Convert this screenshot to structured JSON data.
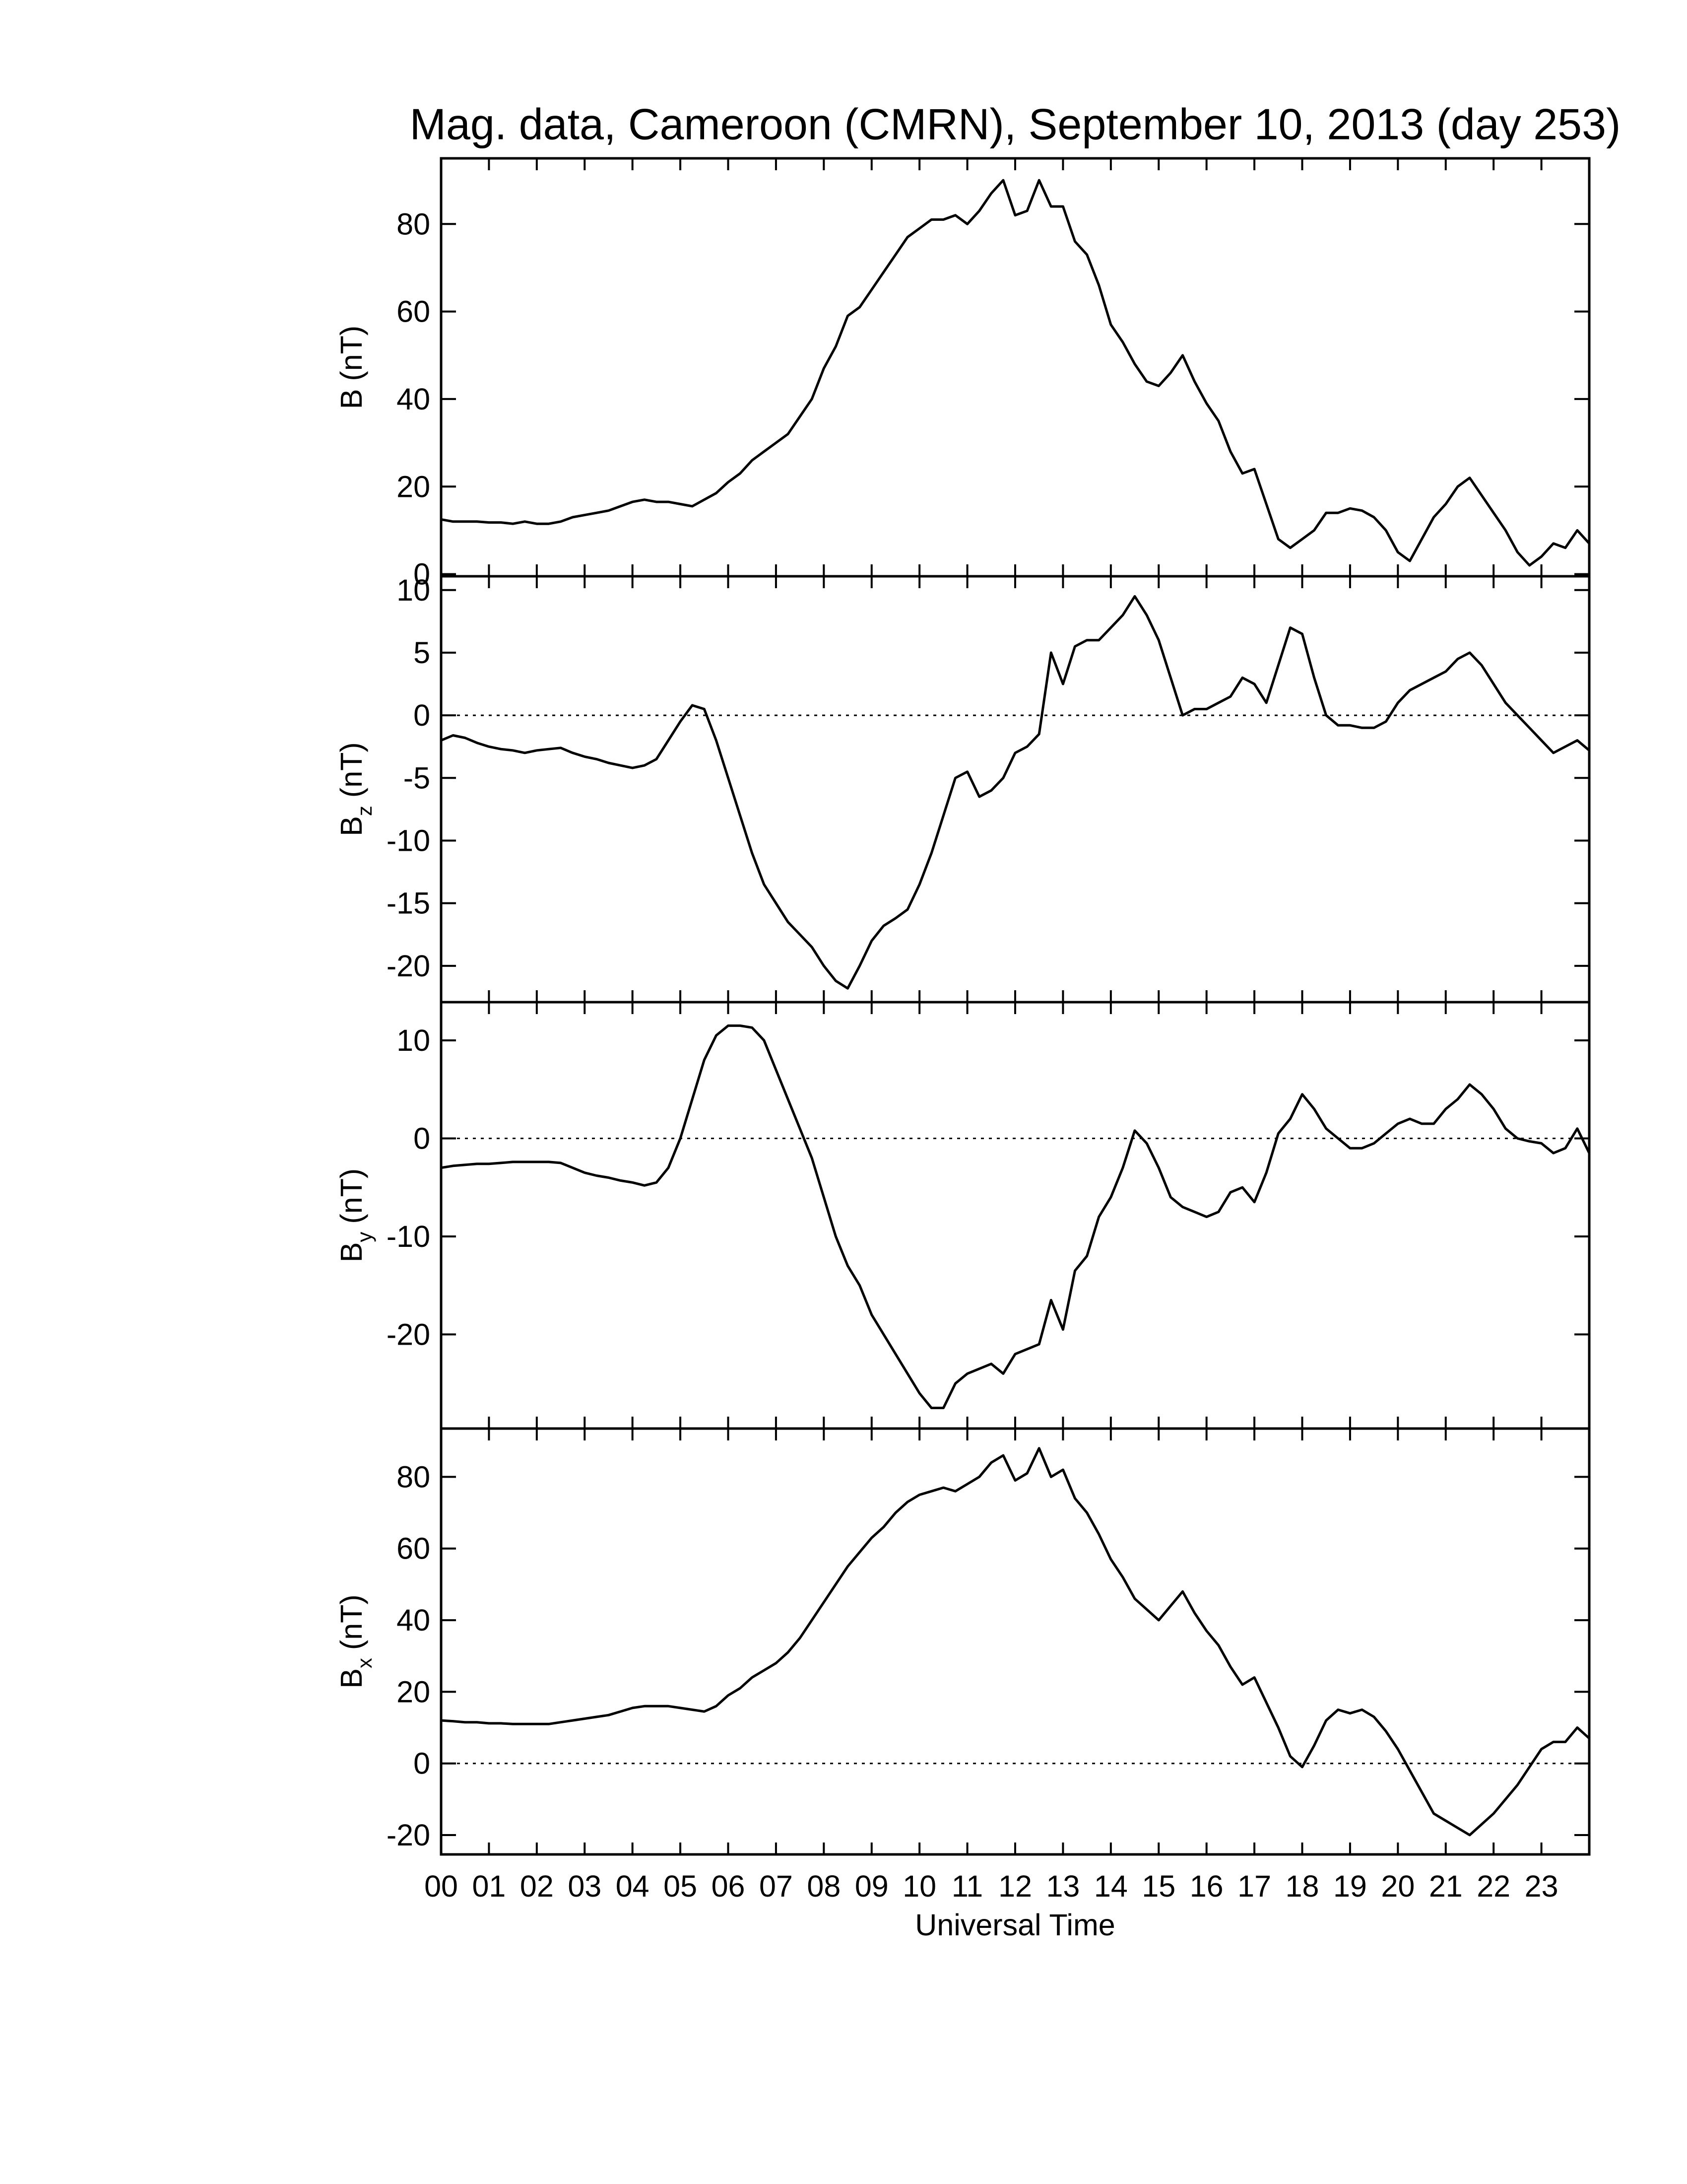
{
  "chart_data": [
    {
      "type": "line",
      "title": "Mag. data, Cameroon (CMRN), September 10, 2013 (day 253)",
      "ylabel": {
        "base": "B",
        "unit": "(nT)"
      },
      "color": "#000000",
      "xlim": [
        0,
        24
      ],
      "ylim": [
        -0.5,
        95
      ],
      "yticks": [
        0,
        20,
        40,
        60,
        80
      ],
      "x": [
        0,
        0.25,
        0.5,
        0.75,
        1,
        1.25,
        1.5,
        1.75,
        2,
        2.25,
        2.5,
        2.75,
        3,
        3.25,
        3.5,
        3.75,
        4,
        4.25,
        4.5,
        4.75,
        5,
        5.25,
        5.5,
        5.75,
        6,
        6.25,
        6.5,
        6.75,
        7,
        7.25,
        7.5,
        7.75,
        8,
        8.25,
        8.5,
        8.75,
        9,
        9.25,
        9.5,
        9.75,
        10,
        10.25,
        10.5,
        10.75,
        11,
        11.25,
        11.5,
        11.75,
        12,
        12.25,
        12.5,
        12.75,
        13,
        13.25,
        13.5,
        13.75,
        14,
        14.25,
        14.5,
        14.75,
        15,
        15.25,
        15.5,
        15.75,
        16,
        16.25,
        16.5,
        16.75,
        17,
        17.25,
        17.5,
        17.75,
        18,
        18.25,
        18.5,
        18.75,
        19,
        19.25,
        19.5,
        19.75,
        20,
        20.25,
        20.5,
        20.75,
        21,
        21.25,
        21.5,
        21.75,
        22,
        22.25,
        22.5,
        22.75,
        23,
        23.25,
        23.5,
        23.75,
        24
      ],
      "values": [
        12.5,
        12,
        12,
        12,
        11.8,
        11.8,
        11.5,
        12,
        11.5,
        11.5,
        12,
        13,
        13.5,
        14,
        14.5,
        15.5,
        16.5,
        17,
        16.5,
        16.5,
        16,
        15.5,
        17,
        18.5,
        21,
        23,
        26,
        28,
        30,
        32,
        36,
        40,
        47,
        52,
        59,
        61,
        65,
        69,
        73,
        77,
        79,
        81,
        81,
        82,
        80,
        83,
        87,
        90,
        82,
        83,
        90,
        84,
        84,
        76,
        73,
        66,
        57,
        53,
        48,
        44,
        43,
        46,
        50,
        44,
        39,
        35,
        28,
        23,
        24,
        16,
        8,
        6,
        8,
        10,
        14,
        14,
        15,
        14.5,
        13,
        10,
        5,
        3,
        8,
        13,
        16,
        20,
        22,
        18,
        14,
        10,
        5,
        2,
        4,
        7,
        6,
        10,
        7
      ]
    },
    {
      "type": "line",
      "ylabel": {
        "base": "B",
        "sub": "z",
        "unit": "(nT)"
      },
      "color": "#000000",
      "zero_line": true,
      "xlim": [
        0,
        24
      ],
      "ylim": [
        -22.9,
        11.1
      ],
      "yticks": [
        10,
        5,
        0,
        -5,
        -10,
        -15,
        -20
      ],
      "x": [
        0,
        0.25,
        0.5,
        0.75,
        1,
        1.25,
        1.5,
        1.75,
        2,
        2.25,
        2.5,
        2.75,
        3,
        3.25,
        3.5,
        3.75,
        4,
        4.25,
        4.5,
        4.75,
        5,
        5.25,
        5.5,
        5.75,
        6,
        6.25,
        6.5,
        6.75,
        7,
        7.25,
        7.5,
        7.75,
        8,
        8.25,
        8.5,
        8.75,
        9,
        9.25,
        9.5,
        9.75,
        10,
        10.25,
        10.5,
        10.75,
        11,
        11.25,
        11.5,
        11.75,
        12,
        12.25,
        12.5,
        12.75,
        13,
        13.25,
        13.5,
        13.75,
        14,
        14.25,
        14.5,
        14.75,
        15,
        15.25,
        15.5,
        15.75,
        16,
        16.25,
        16.5,
        16.75,
        17,
        17.25,
        17.5,
        17.75,
        18,
        18.25,
        18.5,
        18.75,
        19,
        19.25,
        19.5,
        19.75,
        20,
        20.25,
        20.5,
        20.75,
        21,
        21.25,
        21.5,
        21.75,
        22,
        22.25,
        22.5,
        22.75,
        23,
        23.25,
        23.5,
        23.75,
        24
      ],
      "values": [
        -2,
        -1.6,
        -1.8,
        -2.2,
        -2.5,
        -2.7,
        -2.8,
        -3,
        -2.8,
        -2.7,
        -2.6,
        -3,
        -3.3,
        -3.5,
        -3.8,
        -4,
        -4.2,
        -4,
        -3.5,
        -2,
        -0.5,
        0.8,
        0.5,
        -2,
        -5,
        -8,
        -11,
        -13.5,
        -15,
        -16.5,
        -17.5,
        -18.5,
        -20,
        -21.2,
        -21.8,
        -20,
        -18,
        -16.8,
        -16.2,
        -15.5,
        -13.5,
        -11,
        -8,
        -5,
        -4.5,
        -6.5,
        -6,
        -5,
        -3,
        -2.5,
        -1.5,
        5,
        2.5,
        5.5,
        6,
        6,
        7,
        8,
        9.5,
        8,
        6,
        3,
        0,
        0.5,
        0.5,
        1,
        1.5,
        3,
        2.5,
        1,
        4,
        7,
        6.5,
        3,
        0,
        -0.8,
        -0.8,
        -1,
        -1,
        -0.5,
        1,
        2,
        2.5,
        3,
        3.5,
        4.5,
        5,
        4,
        2.5,
        1,
        0,
        -1,
        -2,
        -3,
        -2.5,
        -2,
        -2.8
      ]
    },
    {
      "type": "line",
      "ylabel": {
        "base": "B",
        "sub": "y",
        "unit": "(nT)"
      },
      "color": "#000000",
      "zero_line": true,
      "xlim": [
        0,
        24
      ],
      "ylim": [
        -29.6,
        13.9
      ],
      "yticks": [
        10,
        0,
        -10,
        -20
      ],
      "x": [
        0,
        0.25,
        0.5,
        0.75,
        1,
        1.25,
        1.5,
        1.75,
        2,
        2.25,
        2.5,
        2.75,
        3,
        3.25,
        3.5,
        3.75,
        4,
        4.25,
        4.5,
        4.75,
        5,
        5.25,
        5.5,
        5.75,
        6,
        6.25,
        6.5,
        6.75,
        7,
        7.25,
        7.5,
        7.75,
        8,
        8.25,
        8.5,
        8.75,
        9,
        9.25,
        9.5,
        9.75,
        10,
        10.25,
        10.5,
        10.75,
        11,
        11.25,
        11.5,
        11.75,
        12,
        12.25,
        12.5,
        12.75,
        13,
        13.25,
        13.5,
        13.75,
        14,
        14.25,
        14.5,
        14.75,
        15,
        15.25,
        15.5,
        15.75,
        16,
        16.25,
        16.5,
        16.75,
        17,
        17.25,
        17.5,
        17.75,
        18,
        18.25,
        18.5,
        18.75,
        19,
        19.25,
        19.5,
        19.75,
        20,
        20.25,
        20.5,
        20.75,
        21,
        21.25,
        21.5,
        21.75,
        22,
        22.25,
        22.5,
        22.75,
        23,
        23.25,
        23.5,
        23.75,
        24
      ],
      "values": [
        -3,
        -2.8,
        -2.7,
        -2.6,
        -2.6,
        -2.5,
        -2.4,
        -2.4,
        -2.4,
        -2.4,
        -2.5,
        -3,
        -3.5,
        -3.8,
        -4,
        -4.3,
        -4.5,
        -4.8,
        -4.5,
        -3,
        0,
        4,
        8,
        10.5,
        11.5,
        11.5,
        11.3,
        10,
        7,
        4,
        1,
        -2,
        -6,
        -10,
        -13,
        -15,
        -18,
        -20,
        -22,
        -24,
        -26,
        -27.5,
        -27.5,
        -25,
        -24,
        -23.5,
        -23,
        -24,
        -22,
        -21.5,
        -21,
        -16.5,
        -19.5,
        -13.5,
        -12,
        -8,
        -6,
        -3,
        0.8,
        -0.5,
        -3,
        -6,
        -7,
        -7.5,
        -8,
        -7.5,
        -5.5,
        -5,
        -6.5,
        -3.5,
        0.5,
        2,
        4.5,
        3,
        1,
        0,
        -1,
        -1,
        -0.5,
        0.5,
        1.5,
        2,
        1.5,
        1.5,
        3,
        4,
        5.5,
        4.5,
        3,
        1,
        0,
        -0.3,
        -0.5,
        -1.5,
        -1,
        1,
        -1.5
      ]
    },
    {
      "type": "line",
      "ylabel": {
        "base": "B",
        "sub": "x",
        "unit": "(nT)"
      },
      "xlabel": "Universal Time",
      "color": "#000000",
      "zero_line": true,
      "xlim": [
        0,
        24
      ],
      "ylim": [
        -25.4,
        93.5
      ],
      "yticks": [
        80,
        60,
        40,
        20,
        0,
        -20
      ],
      "xticks": [
        {
          "value": 0,
          "label": "00"
        },
        {
          "value": 1,
          "label": "01"
        },
        {
          "value": 2,
          "label": "02"
        },
        {
          "value": 3,
          "label": "03"
        },
        {
          "value": 4,
          "label": "04"
        },
        {
          "value": 5,
          "label": "05"
        },
        {
          "value": 6,
          "label": "06"
        },
        {
          "value": 7,
          "label": "07"
        },
        {
          "value": 8,
          "label": "08"
        },
        {
          "value": 9,
          "label": "09"
        },
        10,
        11,
        12,
        13,
        14,
        15,
        16,
        17,
        18,
        19,
        20,
        21,
        22,
        23
      ],
      "x": [
        0,
        0.25,
        0.5,
        0.75,
        1,
        1.25,
        1.5,
        1.75,
        2,
        2.25,
        2.5,
        2.75,
        3,
        3.25,
        3.5,
        3.75,
        4,
        4.25,
        4.5,
        4.75,
        5,
        5.25,
        5.5,
        5.75,
        6,
        6.25,
        6.5,
        6.75,
        7,
        7.25,
        7.5,
        7.75,
        8,
        8.25,
        8.5,
        8.75,
        9,
        9.25,
        9.5,
        9.75,
        10,
        10.25,
        10.5,
        10.75,
        11,
        11.25,
        11.5,
        11.75,
        12,
        12.25,
        12.5,
        12.75,
        13,
        13.25,
        13.5,
        13.75,
        14,
        14.25,
        14.5,
        14.75,
        15,
        15.25,
        15.5,
        15.75,
        16,
        16.25,
        16.5,
        16.75,
        17,
        17.25,
        17.5,
        17.75,
        18,
        18.25,
        18.5,
        18.75,
        19,
        19.25,
        19.5,
        19.75,
        20,
        20.25,
        20.5,
        20.75,
        21,
        21.25,
        21.5,
        21.75,
        22,
        22.25,
        22.5,
        22.75,
        23,
        23.25,
        23.5,
        23.75,
        24
      ],
      "values": [
        12,
        11.8,
        11.5,
        11.5,
        11.2,
        11.2,
        11,
        11,
        11,
        11,
        11.5,
        12,
        12.5,
        13,
        13.5,
        14.5,
        15.5,
        16,
        16,
        16,
        15.5,
        15,
        14.5,
        16,
        19,
        21,
        24,
        26,
        28,
        31,
        35,
        40,
        45,
        50,
        55,
        59,
        63,
        66,
        70,
        73,
        75,
        76,
        77,
        76,
        78,
        80,
        84,
        86,
        79,
        81,
        88,
        80,
        82,
        74,
        70,
        64,
        57,
        52,
        46,
        43,
        40,
        44,
        48,
        42,
        37,
        33,
        27,
        22,
        24,
        17,
        10,
        2,
        -1,
        5,
        12,
        15,
        14,
        15,
        13,
        9,
        4,
        -2,
        -8,
        -14,
        -16,
        -18,
        -20,
        -17,
        -14,
        -10,
        -6,
        -1,
        4,
        6,
        6,
        10,
        7
      ]
    }
  ]
}
